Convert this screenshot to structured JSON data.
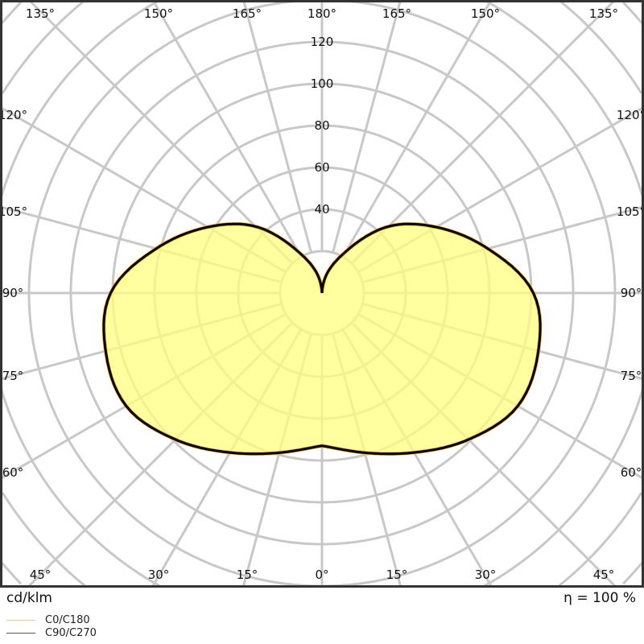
{
  "chart_data": {
    "type": "polar",
    "unit_label": "cd/klm",
    "efficiency_label": "η = 100 %",
    "radial_ticks": [
      40,
      60,
      80,
      100,
      120
    ],
    "radial_grid": [
      20,
      40,
      60,
      80,
      100,
      120,
      140,
      160,
      180,
      200
    ],
    "angle_step_deg": 15,
    "angle_labels": {
      "top": [
        "135°",
        "150°",
        "165°",
        "180°",
        "165°",
        "150°",
        "135°"
      ],
      "left": [
        "120°",
        "105°",
        "90°",
        "75°",
        "60°"
      ],
      "right": [
        "120°",
        "105°",
        "90°",
        "75°",
        "60°"
      ],
      "bottom": [
        "45°",
        "30°",
        "15°",
        "0°",
        "15°",
        "30°",
        "45°"
      ]
    },
    "gamma": [
      0,
      15,
      30,
      45,
      60,
      75,
      90,
      105,
      120,
      135,
      150,
      165,
      180
    ],
    "series": [
      {
        "name": "C0/C180",
        "color": "#f5a623",
        "values": [
          73,
          79,
          88,
          99,
          108,
          107,
          101,
          82,
          63,
          45,
          23,
          10,
          0
        ]
      },
      {
        "name": "C90/C270",
        "color": "#000000",
        "values": [
          73,
          79,
          88,
          99,
          108,
          107,
          101,
          82,
          63,
          45,
          23,
          10,
          0
        ]
      }
    ],
    "fill_color": "#ffff80",
    "grid": true,
    "legend_position": "bottom-left"
  }
}
